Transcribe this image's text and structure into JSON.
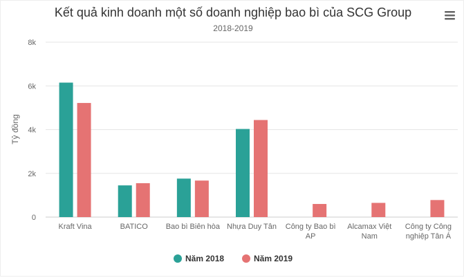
{
  "chart_data": {
    "type": "bar",
    "title": "Kết quả kinh doanh một số doanh nghiệp bao bì của SCG Group",
    "subtitle": "2018-2019",
    "ylabel": "Tỷ đồng",
    "xlabel": "",
    "ylim": [
      0,
      8000
    ],
    "yticks": [
      0,
      2000,
      4000,
      6000,
      8000
    ],
    "ytick_labels": [
      "0",
      "2k",
      "4k",
      "6k",
      "8k"
    ],
    "categories": [
      [
        "Kraft Vina"
      ],
      [
        "BATICO"
      ],
      [
        "Bao bì Biên hòa"
      ],
      [
        "Nhựa Duy Tân"
      ],
      [
        "Công ty Bao bì",
        "AP"
      ],
      [
        "Alcamax Việt",
        "Nam"
      ],
      [
        "Công ty Công",
        "nghiệp Tân Á"
      ]
    ],
    "series": [
      {
        "name": "Năm 2018",
        "color": "#2aa197",
        "values": [
          6150,
          1450,
          1760,
          4030,
          null,
          null,
          null
        ]
      },
      {
        "name": "Năm 2019",
        "color": "#e57373",
        "values": [
          5220,
          1550,
          1670,
          4440,
          600,
          650,
          780
        ]
      }
    ],
    "grid": true,
    "legend_position": "bottom-center"
  },
  "menu": {
    "icon": "hamburger-menu-icon"
  }
}
